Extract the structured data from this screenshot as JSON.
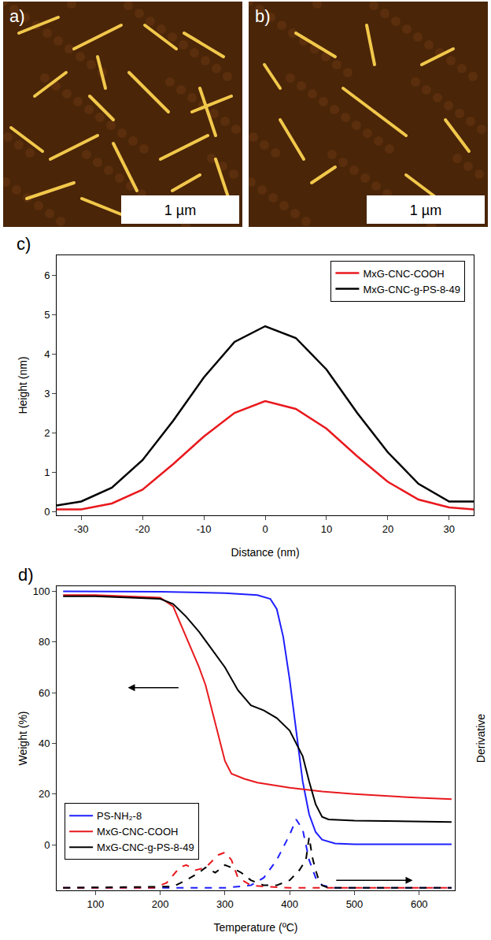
{
  "images": [
    {
      "label": "a)",
      "scale_bar": "1 µm"
    },
    {
      "label": "b)",
      "scale_bar": "1 µm"
    }
  ],
  "chart_data": [
    {
      "type": "line",
      "label": "c)",
      "x_label": "Distance (nm)",
      "y_label": "Height (nm)",
      "x": [
        -34,
        -30,
        -25,
        -20,
        -15,
        -10,
        -5,
        0,
        5,
        10,
        15,
        20,
        25,
        30,
        34
      ],
      "series": [
        {
          "name": "MxG-CNC-COOH",
          "color": "#e8191e",
          "values": [
            0.05,
            0.05,
            0.2,
            0.55,
            1.2,
            1.9,
            2.5,
            2.8,
            2.6,
            2.1,
            1.4,
            0.75,
            0.3,
            0.1,
            0.05
          ]
        },
        {
          "name": "MxG-CNC-g-PS-8-49",
          "color": "#000000",
          "values": [
            0.15,
            0.25,
            0.6,
            1.3,
            2.3,
            3.4,
            4.3,
            4.7,
            4.4,
            3.6,
            2.5,
            1.5,
            0.7,
            0.25,
            0.25
          ]
        }
      ],
      "xlim": [
        -34,
        34
      ],
      "xticks": [
        -30,
        -20,
        -10,
        0,
        10,
        20,
        30
      ],
      "ylim": [
        -0.1,
        6.5
      ],
      "yticks": [
        0,
        1,
        2,
        3,
        4,
        5,
        6
      ],
      "legend": "top right",
      "grid": false
    },
    {
      "type": "line",
      "label": "d)",
      "x_label": "Temperature (ºC)",
      "y_label": "Weight (%)",
      "y2_label": "Derivative",
      "xlim": [
        40,
        655
      ],
      "xticks": [
        100,
        200,
        300,
        400,
        500,
        600
      ],
      "ylim": [
        -18,
        102
      ],
      "yticks": [
        0,
        20,
        40,
        60,
        80,
        100
      ],
      "y2lim": [
        0,
        120
      ],
      "y2ticks": [],
      "legend": "bottom left",
      "grid": false,
      "series": [
        {
          "name": "PS-NH₂-8",
          "color": "#1f1fff",
          "line_style": "solid",
          "x": [
            50,
            100,
            200,
            300,
            350,
            370,
            380,
            390,
            400,
            410,
            420,
            430,
            440,
            450,
            470,
            500,
            650
          ],
          "values": [
            100,
            100,
            99.8,
            99.3,
            98.5,
            97,
            93,
            82,
            65,
            45,
            25,
            12,
            5,
            2,
            0.5,
            0.2,
            0.2
          ]
        },
        {
          "name": "MxG-CNC-COOH",
          "color": "#e8191e",
          "line_style": "solid",
          "x": [
            50,
            100,
            200,
            220,
            230,
            240,
            250,
            260,
            270,
            280,
            290,
            300,
            310,
            330,
            350,
            400,
            450,
            500,
            600,
            650
          ],
          "values": [
            98.5,
            98.5,
            97.5,
            94,
            88,
            82,
            76,
            70,
            63,
            53,
            43,
            33,
            28,
            26,
            24.5,
            22.5,
            21,
            20,
            18.5,
            18
          ]
        },
        {
          "name": "MxG-CNC-g-PS-8-49",
          "color": "#000000",
          "line_style": "solid",
          "x": [
            50,
            100,
            200,
            220,
            240,
            260,
            280,
            300,
            320,
            340,
            360,
            380,
            400,
            420,
            430,
            440,
            450,
            460,
            500,
            650
          ],
          "values": [
            98,
            98,
            97,
            95,
            90,
            84,
            77,
            70,
            61,
            55,
            53,
            50,
            45,
            35,
            25,
            16,
            11,
            10,
            9.5,
            9
          ]
        },
        {
          "color": "#1f1fff",
          "line_style": "dashed",
          "axis": "y2",
          "x": [
            50,
            300,
            340,
            360,
            380,
            400,
            410,
            420,
            430,
            440,
            450,
            470,
            650
          ],
          "values": [
            1,
            1,
            2,
            5,
            12,
            22,
            28,
            24,
            12,
            5,
            2,
            1,
            1
          ]
        },
        {
          "color": "#e8191e",
          "line_style": "dashed",
          "axis": "y2",
          "x": [
            50,
            190,
            210,
            230,
            240,
            255,
            270,
            290,
            300,
            310,
            320,
            340,
            360,
            400,
            650
          ],
          "values": [
            1,
            1,
            3,
            9,
            10,
            8,
            9,
            14,
            15,
            12,
            5,
            2,
            1.5,
            1,
            1
          ]
        },
        {
          "color": "#000000",
          "line_style": "dashed",
          "axis": "y2",
          "x": [
            50,
            220,
            240,
            260,
            270,
            285,
            300,
            310,
            325,
            340,
            360,
            380,
            400,
            415,
            425,
            430,
            435,
            440,
            445,
            450,
            460,
            650
          ],
          "values": [
            1,
            1.5,
            4,
            7,
            9,
            7,
            10,
            9,
            7,
            4,
            2,
            2,
            4,
            8,
            12,
            21,
            13,
            8,
            4,
            2,
            1,
            1
          ]
        }
      ]
    }
  ]
}
